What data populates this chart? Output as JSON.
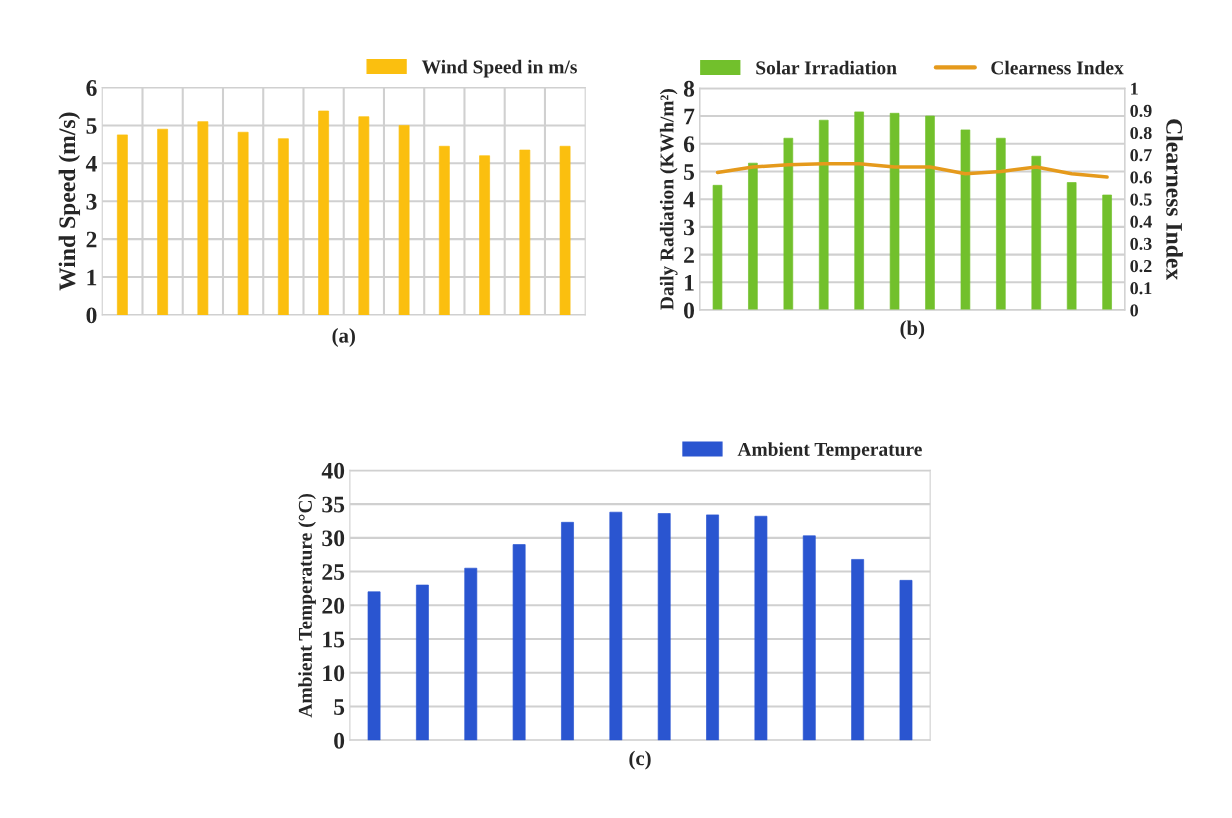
{
  "chart_data": [
    {
      "type": "bar",
      "xlabel": "(a)",
      "ylabel": "Wind Speed (m/s)",
      "categories": [
        null,
        null,
        null,
        null,
        null,
        null,
        null,
        null,
        null,
        null,
        null,
        null
      ],
      "series": [
        {
          "name": "Wind Speed in m/s",
          "color": "#fbbf0f",
          "values": [
            4.75,
            4.9,
            5.1,
            4.82,
            4.65,
            5.38,
            5.23,
            5.0,
            4.45,
            4.2,
            4.35,
            4.45
          ]
        }
      ],
      "ylim": [
        0,
        6
      ],
      "yticks": [
        0,
        1,
        2,
        3,
        4,
        5,
        6
      ],
      "grid": true,
      "legend": "top right"
    },
    {
      "type": "bar",
      "xlabel": "(b)",
      "ylabel": "Daily Radiation (KWh/m²)",
      "y2label": "Clearness Index",
      "categories": [
        null,
        null,
        null,
        null,
        null,
        null,
        null,
        null,
        null,
        null,
        null,
        null
      ],
      "series": [
        {
          "name": "Solar Irradiation",
          "color": "#72c02c",
          "values": [
            4.5,
            5.3,
            6.2,
            6.85,
            7.15,
            7.1,
            7.0,
            6.5,
            6.2,
            5.55,
            4.6,
            4.15
          ]
        },
        {
          "name": "Clearness Index",
          "type": "line",
          "axis": "y2",
          "color": "#e59a1c",
          "values": [
            0.62,
            0.645,
            0.655,
            0.66,
            0.66,
            0.645,
            0.645,
            0.615,
            0.625,
            0.645,
            0.615,
            0.6
          ]
        }
      ],
      "ylim": [
        0,
        8
      ],
      "yticks": [
        0,
        1,
        2,
        3,
        4,
        5,
        6,
        7,
        8
      ],
      "y2lim": [
        0,
        1
      ],
      "y2ticks": [
        0,
        0.1,
        0.2,
        0.3,
        0.4,
        0.5,
        0.6,
        0.7,
        0.8,
        0.9,
        1
      ],
      "grid": "y",
      "legend": "top"
    },
    {
      "type": "bar",
      "xlabel": "(c)",
      "ylabel": "Ambient Temperature (°C)",
      "categories": [
        null,
        null,
        null,
        null,
        null,
        null,
        null,
        null,
        null,
        null,
        null,
        null
      ],
      "series": [
        {
          "name": "Ambient Temperature",
          "color": "#2a55d0",
          "values": [
            22,
            23,
            25.5,
            29,
            32.3,
            33.8,
            33.6,
            33.4,
            33.2,
            30.3,
            26.8,
            23.7
          ]
        }
      ],
      "ylim": [
        0,
        40
      ],
      "yticks": [
        0,
        5,
        10,
        15,
        20,
        25,
        30,
        35,
        40
      ],
      "grid": "y",
      "legend": "top right"
    }
  ]
}
